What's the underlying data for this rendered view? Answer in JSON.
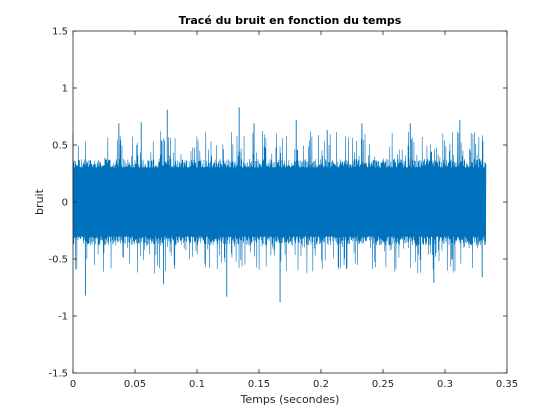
{
  "chart_data": {
    "type": "line",
    "title": "Tracé du bruit en fonction du temps",
    "xlabel": "Temps (secondes)",
    "ylabel": "bruit",
    "xlim": [
      0,
      0.35
    ],
    "ylim": [
      -1.5,
      1.5
    ],
    "x_ticks": [
      0,
      0.05,
      0.1,
      0.15,
      0.2,
      0.25,
      0.3,
      0.35
    ],
    "x_tick_labels": [
      "0",
      "0.05",
      "0.1",
      "0.15",
      "0.2",
      "0.25",
      "0.3",
      "0.35"
    ],
    "y_ticks": [
      -1.5,
      -1,
      -0.5,
      0,
      0.5,
      1,
      1.5
    ],
    "y_tick_labels": [
      "-1.5",
      "-1",
      "-0.5",
      "0",
      "0.5",
      "1",
      "1.5"
    ],
    "grid": false,
    "series": [
      {
        "color": "#0072BD",
        "x_range": [
          0,
          0.333
        ],
        "description": "dense random noise centered on 0",
        "typical_envelope": [
          -0.38,
          0.38
        ],
        "peak_max": 0.83,
        "peak_min": -0.88,
        "samples": [
          {
            "x": 0.0,
            "y": 0.6
          },
          {
            "x": 0.01,
            "y": -0.82
          },
          {
            "x": 0.037,
            "y": 0.69
          },
          {
            "x": 0.055,
            "y": 0.7
          },
          {
            "x": 0.073,
            "y": -0.72
          },
          {
            "x": 0.076,
            "y": 0.81
          },
          {
            "x": 0.124,
            "y": -0.83
          },
          {
            "x": 0.134,
            "y": 0.83
          },
          {
            "x": 0.146,
            "y": 0.69
          },
          {
            "x": 0.167,
            "y": -0.88
          },
          {
            "x": 0.18,
            "y": 0.72
          },
          {
            "x": 0.205,
            "y": 0.63
          },
          {
            "x": 0.233,
            "y": 0.69
          },
          {
            "x": 0.272,
            "y": 0.69
          },
          {
            "x": 0.291,
            "y": -0.71
          },
          {
            "x": 0.312,
            "y": 0.72
          },
          {
            "x": 0.33,
            "y": -0.66
          }
        ]
      }
    ]
  }
}
